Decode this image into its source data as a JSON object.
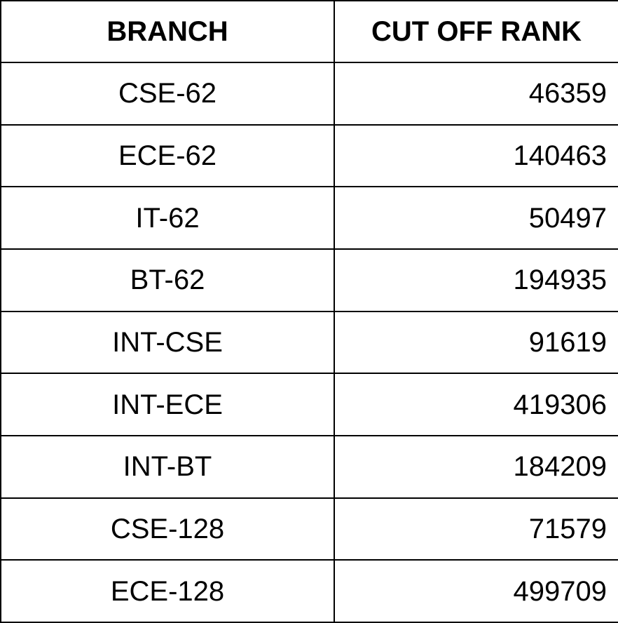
{
  "table": {
    "headers": {
      "branch": "BRANCH",
      "rank": "CUT OFF RANK"
    },
    "rows": [
      {
        "branch": "CSE-62",
        "rank": "46359"
      },
      {
        "branch": "ECE-62",
        "rank": "140463"
      },
      {
        "branch": "IT-62",
        "rank": "50497"
      },
      {
        "branch": "BT-62",
        "rank": "194935"
      },
      {
        "branch": "INT-CSE",
        "rank": "91619"
      },
      {
        "branch": "INT-ECE",
        "rank": "419306"
      },
      {
        "branch": "INT-BT",
        "rank": "184209"
      },
      {
        "branch": "CSE-128",
        "rank": "71579"
      },
      {
        "branch": "ECE-128",
        "rank": "499709"
      }
    ]
  }
}
